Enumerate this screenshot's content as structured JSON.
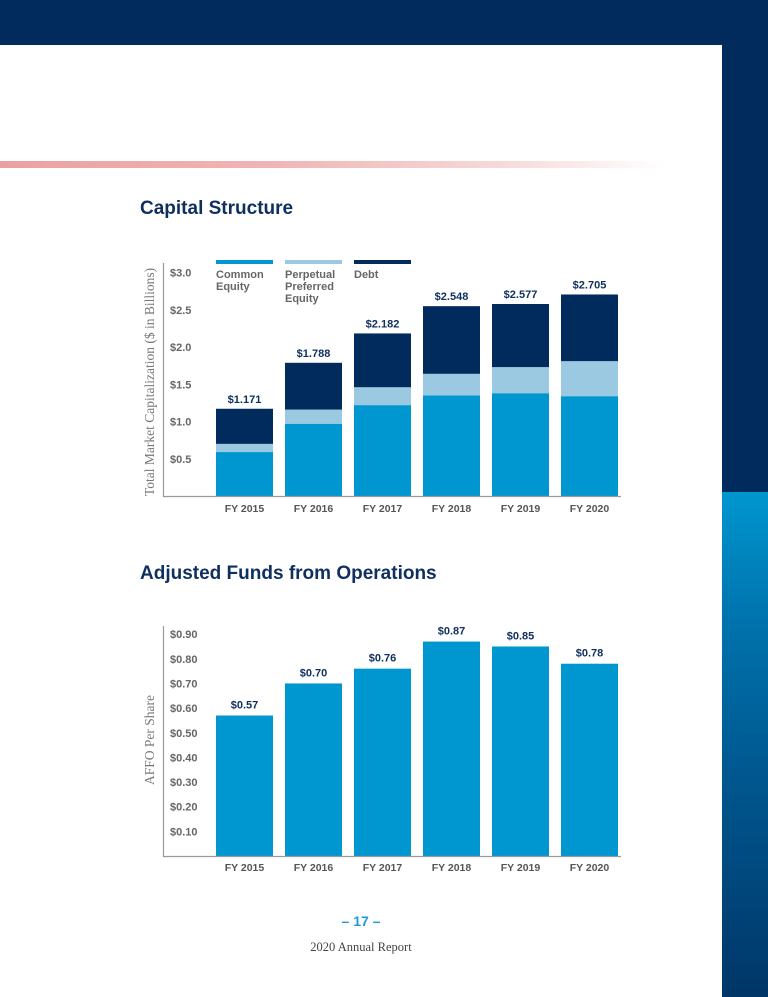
{
  "page": {
    "page_number": "– 17 –",
    "report_name": "2020 Annual Report"
  },
  "colors": {
    "navy": "#002b5c",
    "common_equity": "#0096cf",
    "preferred": "#9bc9e2",
    "debt": "#002b5c",
    "label": "#0f2f5f"
  },
  "chart_data": [
    {
      "type": "bar",
      "stacked": true,
      "title": "Capital Structure",
      "ylabel": "Total Market Capitalization ($ in Billions)",
      "xlabel": "",
      "categories": [
        "FY 2015",
        "FY 2016",
        "FY 2017",
        "FY 2018",
        "FY 2019",
        "FY 2020"
      ],
      "yticks": [
        "$0.5",
        "$1.0",
        "$1.5",
        "$2.0",
        "$2.5",
        "$3.0"
      ],
      "ytick_values": [
        0.5,
        1.0,
        1.5,
        2.0,
        2.5,
        3.0
      ],
      "ylim": [
        0,
        3.0
      ],
      "legend_position": "top",
      "legend": [
        {
          "label_lines": [
            "Common",
            "Equity"
          ],
          "color": "#0096cf"
        },
        {
          "label_lines": [
            "Perpetual",
            "Preferred",
            "Equity"
          ],
          "color": "#9bc9e2"
        },
        {
          "label_lines": [
            "Debt"
          ],
          "color": "#002b5c"
        }
      ],
      "series": [
        {
          "name": "Common Equity",
          "values": [
            0.59,
            0.97,
            1.22,
            1.35,
            1.38,
            1.34
          ]
        },
        {
          "name": "Perpetual Preferred Equity",
          "values": [
            0.11,
            0.19,
            0.24,
            0.29,
            0.35,
            0.47
          ]
        },
        {
          "name": "Debt",
          "values": [
            0.471,
            0.628,
            0.722,
            0.908,
            0.847,
            0.895
          ]
        }
      ],
      "totals": [
        1.171,
        1.788,
        2.182,
        2.548,
        2.577,
        2.705
      ],
      "total_labels": [
        "$1.171",
        "$1.788",
        "$2.182",
        "$2.548",
        "$2.577",
        "$2.705"
      ]
    },
    {
      "type": "bar",
      "title": "Adjusted Funds from Operations",
      "ylabel": "AFFO Per Share",
      "xlabel": "",
      "categories": [
        "FY 2015",
        "FY 2016",
        "FY 2017",
        "FY 2018",
        "FY 2019",
        "FY 2020"
      ],
      "values": [
        0.57,
        0.7,
        0.76,
        0.87,
        0.85,
        0.78
      ],
      "value_labels": [
        "$0.57",
        "$0.70",
        "$0.76",
        "$0.87",
        "$0.85",
        "$0.78"
      ],
      "yticks": [
        "$0.10",
        "$0.20",
        "$0.30",
        "$0.40",
        "$0.50",
        "$0.60",
        "$0.70",
        "$0.80",
        "$0.90"
      ],
      "ytick_values": [
        0.1,
        0.2,
        0.3,
        0.4,
        0.5,
        0.6,
        0.7,
        0.8,
        0.9
      ],
      "ylim": [
        0,
        0.93
      ]
    }
  ]
}
